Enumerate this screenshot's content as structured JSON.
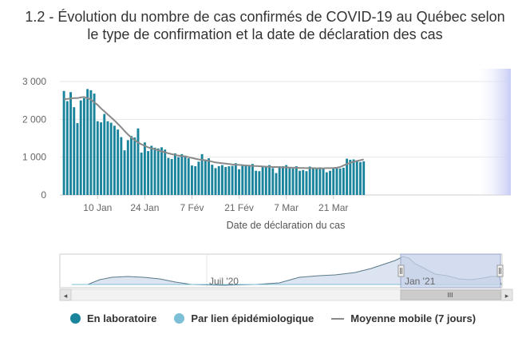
{
  "title": {
    "line1": "1.2 - Évolution du nombre de cas confirmés de COVID-19 au Québec selon",
    "line2": "le type de confirmation et la date de déclaration des cas"
  },
  "colors": {
    "lab": "#19849c",
    "epi": "#7cbfd6",
    "moving_avg": "#8a8a8a",
    "navigator_fill": "#dbe4f0",
    "navigator_mask": "#c6d2ea",
    "highlight": "#c7cdf5"
  },
  "navigator": {
    "labels": [
      "Juil '20",
      "Jan '21"
    ],
    "scroll_grip": "III"
  },
  "legend": [
    {
      "label": "En laboratoire",
      "shape": "dot",
      "color_key": "lab"
    },
    {
      "label": "Par lien épidémiologique",
      "shape": "dot",
      "color_key": "epi"
    },
    {
      "label": "Moyenne mobile (7 jours)",
      "shape": "line",
      "color_key": "moving_avg"
    }
  ],
  "chart_data": {
    "type": "bar",
    "xlabel": "Date de déclaration du cas",
    "ylabel": "",
    "ylim": [
      0,
      3000
    ],
    "yticks": [
      0,
      1000,
      2000,
      3000
    ],
    "ytick_labels": [
      "0",
      "1 000",
      "2 000",
      "3 000"
    ],
    "x_start": "2020-12-31",
    "xticks": [
      {
        "date": "2021-01-10",
        "label": "10 Jan"
      },
      {
        "date": "2021-01-24",
        "label": "24 Jan"
      },
      {
        "date": "2021-02-07",
        "label": "7 Fév"
      },
      {
        "date": "2021-02-21",
        "label": "21 Fév"
      },
      {
        "date": "2021-03-07",
        "label": "7 Mar"
      },
      {
        "date": "2021-03-21",
        "label": "21 Mar"
      }
    ],
    "grid": true,
    "legend_position": "bottom",
    "series": [
      {
        "name": "En laboratoire",
        "values": [
          2750,
          2480,
          2720,
          2320,
          1900,
          2500,
          2560,
          2800,
          2770,
          2680,
          1950,
          1920,
          2140,
          1950,
          1910,
          1830,
          1730,
          1530,
          1180,
          1450,
          1560,
          1520,
          1760,
          1120,
          1390,
          1160,
          1300,
          1250,
          1230,
          1260,
          1200,
          980,
          950,
          1100,
          1000,
          1080,
          1040,
          970,
          780,
          760,
          880,
          1080,
          930,
          970,
          800,
          710,
          760,
          790,
          740,
          760,
          770,
          840,
          680,
          770,
          800,
          770,
          820,
          640,
          630,
          770,
          760,
          790,
          710,
          580,
          760,
          760,
          790,
          710,
          700,
          760,
          640,
          660,
          630,
          750,
          720,
          700,
          730,
          690,
          600,
          640,
          710,
          730,
          700,
          720,
          960,
          930,
          940,
          900,
          870,
          890
        ]
      },
      {
        "name": "Par lien épidémiologique",
        "values": [
          2,
          2,
          2,
          2,
          1,
          2,
          2,
          2,
          2,
          2,
          1,
          1,
          2,
          1,
          1,
          1,
          1,
          1,
          1,
          1,
          1,
          1,
          1,
          1,
          1,
          1,
          1,
          1,
          1,
          1,
          1,
          1,
          1,
          1,
          1,
          1,
          1,
          1,
          1,
          1,
          1,
          1,
          1,
          1,
          1,
          1,
          1,
          1,
          1,
          1,
          1,
          1,
          1,
          1,
          1,
          1,
          1,
          1,
          1,
          1,
          1,
          1,
          1,
          1,
          1,
          1,
          1,
          1,
          1,
          1,
          1,
          1,
          1,
          1,
          1,
          1,
          1,
          1,
          1,
          1,
          1,
          1,
          1,
          1,
          1,
          1,
          1,
          1,
          1,
          1
        ]
      },
      {
        "name": "Moyenne mobile (7 jours)",
        "values": [
          2530,
          2540,
          2550,
          2560,
          2560,
          2580,
          2590,
          2560,
          2520,
          2450,
          2380,
          2290,
          2210,
          2130,
          2050,
          1970,
          1880,
          1790,
          1690,
          1600,
          1520,
          1450,
          1390,
          1340,
          1300,
          1260,
          1230,
          1210,
          1180,
          1150,
          1130,
          1100,
          1080,
          1060,
          1040,
          1030,
          1020,
          1000,
          980,
          960,
          940,
          930,
          920,
          900,
          880,
          860,
          850,
          840,
          830,
          820,
          810,
          800,
          795,
          790,
          780,
          775,
          770,
          765,
          760,
          755,
          750,
          745,
          740,
          740,
          735,
          730,
          730,
          725,
          720,
          720,
          715,
          715,
          710,
          710,
          710,
          705,
          705,
          705,
          710,
          710,
          715,
          720,
          740,
          780,
          820,
          850,
          880,
          900,
          920,
          940
        ]
      }
    ]
  }
}
